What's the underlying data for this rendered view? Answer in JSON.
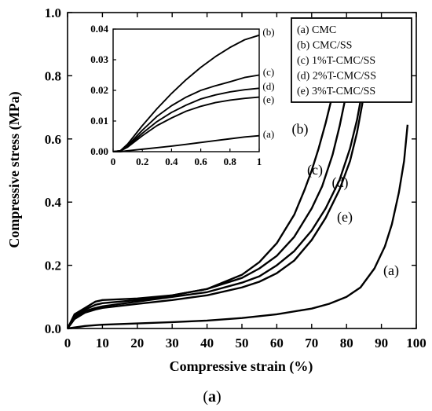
{
  "chart_data": {
    "type": "line",
    "caption_open": "(",
    "caption_letter": "a",
    "caption_close": ")",
    "xlabel": "Compressive strain (%)",
    "ylabel": "Compressive stress (MPa)",
    "xlim": [
      0,
      100
    ],
    "ylim": [
      0,
      1.0
    ],
    "x_ticks": [
      0,
      10,
      20,
      30,
      40,
      50,
      60,
      70,
      80,
      90,
      100
    ],
    "x_tick_labels": [
      "0",
      "10",
      "20",
      "30",
      "40",
      "50",
      "60",
      "70",
      "80",
      "90",
      "100"
    ],
    "y_ticks": [
      0,
      0.2,
      0.4,
      0.6,
      0.8,
      1.0
    ],
    "y_tick_labels": [
      "0.0",
      "0.2",
      "0.4",
      "0.6",
      "0.8",
      "1.0"
    ],
    "grid": false,
    "legend_position": "top-right",
    "legend": [
      "(a) CMC",
      "(b) CMC/SS",
      "(c) 1%T-CMC/SS",
      "(d) 2%T-CMC/SS",
      "(e) 3%T-CMC/SS"
    ],
    "series": [
      {
        "name": "(a) CMC",
        "label": "(a)",
        "x": [
          0,
          5,
          10,
          20,
          30,
          40,
          50,
          60,
          70,
          75,
          80,
          84,
          88,
          91,
          93,
          95,
          96.5,
          97.5
        ],
        "y": [
          0,
          0.008,
          0.012,
          0.016,
          0.02,
          0.025,
          0.033,
          0.045,
          0.063,
          0.078,
          0.1,
          0.13,
          0.19,
          0.26,
          0.33,
          0.43,
          0.53,
          0.645
        ]
      },
      {
        "name": "(b) CMC/SS",
        "label": "(b)",
        "x": [
          0,
          2,
          5,
          8,
          10,
          20,
          30,
          40,
          50,
          55,
          60,
          65,
          68,
          70,
          72,
          74,
          76,
          77.5,
          78.5
        ],
        "y": [
          0,
          0.045,
          0.065,
          0.085,
          0.09,
          0.095,
          0.105,
          0.125,
          0.17,
          0.21,
          0.27,
          0.36,
          0.44,
          0.5,
          0.57,
          0.65,
          0.74,
          0.81,
          0.86
        ]
      },
      {
        "name": "(c) 1%T-CMC/SS",
        "label": "(c)",
        "x": [
          0,
          2,
          5,
          8,
          10,
          20,
          30,
          40,
          50,
          55,
          60,
          65,
          70,
          73,
          76,
          78,
          79.5,
          80.5
        ],
        "y": [
          0,
          0.04,
          0.06,
          0.075,
          0.08,
          0.09,
          0.105,
          0.125,
          0.16,
          0.19,
          0.23,
          0.29,
          0.38,
          0.45,
          0.55,
          0.64,
          0.72,
          0.79
        ]
      },
      {
        "name": "(d) 2%T-CMC/SS",
        "label": "(d)",
        "x": [
          0,
          2,
          5,
          8,
          10,
          20,
          30,
          40,
          50,
          55,
          60,
          65,
          70,
          74,
          78,
          81,
          83,
          84.5,
          85.5
        ],
        "y": [
          0,
          0.035,
          0.055,
          0.065,
          0.07,
          0.085,
          0.1,
          0.115,
          0.145,
          0.165,
          0.2,
          0.245,
          0.31,
          0.38,
          0.47,
          0.57,
          0.66,
          0.75,
          0.83
        ]
      },
      {
        "name": "(e) 3%T-CMC/SS",
        "label": "(e)",
        "x": [
          0,
          2,
          5,
          8,
          10,
          20,
          30,
          40,
          50,
          55,
          60,
          65,
          70,
          74,
          78,
          81,
          83,
          84.5,
          85.5
        ],
        "y": [
          0,
          0.03,
          0.05,
          0.06,
          0.065,
          0.078,
          0.09,
          0.105,
          0.13,
          0.148,
          0.175,
          0.215,
          0.28,
          0.35,
          0.44,
          0.53,
          0.62,
          0.71,
          0.8
        ]
      }
    ],
    "inset": {
      "type": "line",
      "xlim": [
        0,
        1
      ],
      "ylim": [
        0,
        0.04
      ],
      "x_ticks": [
        0,
        0.2,
        0.4,
        0.6,
        0.8,
        1
      ],
      "x_tick_labels": [
        "0",
        "0.2",
        "0.4",
        "0.6",
        "0.8",
        "1"
      ],
      "y_ticks": [
        0,
        0.01,
        0.02,
        0.03,
        0.04
      ],
      "y_tick_labels": [
        "0.00",
        "0.01",
        "0.02",
        "0.03",
        "0.04"
      ],
      "series": [
        {
          "label": "(a)",
          "x": [
            0,
            0.05,
            0.1,
            0.2,
            0.3,
            0.4,
            0.5,
            0.6,
            0.7,
            0.8,
            0.9,
            1.0
          ],
          "y": [
            0,
            0,
            0.0003,
            0.0008,
            0.0013,
            0.0018,
            0.0024,
            0.003,
            0.0036,
            0.0042,
            0.0048,
            0.0052
          ]
        },
        {
          "label": "(b)",
          "x": [
            0,
            0.05,
            0.1,
            0.2,
            0.3,
            0.4,
            0.5,
            0.6,
            0.7,
            0.8,
            0.9,
            1.0
          ],
          "y": [
            0,
            0.0003,
            0.0025,
            0.0085,
            0.014,
            0.019,
            0.0235,
            0.0275,
            0.031,
            0.034,
            0.0365,
            0.038
          ]
        },
        {
          "label": "(c)",
          "x": [
            0,
            0.05,
            0.1,
            0.2,
            0.3,
            0.4,
            0.5,
            0.6,
            0.7,
            0.8,
            0.9,
            1.0
          ],
          "y": [
            0,
            0.0003,
            0.002,
            0.007,
            0.0115,
            0.015,
            0.0178,
            0.02,
            0.0215,
            0.0228,
            0.0242,
            0.025
          ]
        },
        {
          "label": "(d)",
          "x": [
            0,
            0.05,
            0.1,
            0.2,
            0.3,
            0.4,
            0.5,
            0.6,
            0.7,
            0.8,
            0.9,
            1.0
          ],
          "y": [
            0,
            0.0002,
            0.0018,
            0.006,
            0.0098,
            0.0128,
            0.0152,
            0.0172,
            0.0185,
            0.0195,
            0.0202,
            0.0207
          ]
        },
        {
          "label": "(e)",
          "x": [
            0,
            0.05,
            0.1,
            0.2,
            0.3,
            0.4,
            0.5,
            0.6,
            0.7,
            0.8,
            0.9,
            1.0
          ],
          "y": [
            0,
            0.0002,
            0.0015,
            0.0052,
            0.0085,
            0.011,
            0.0132,
            0.0148,
            0.016,
            0.0168,
            0.0174,
            0.0178
          ]
        }
      ]
    }
  }
}
